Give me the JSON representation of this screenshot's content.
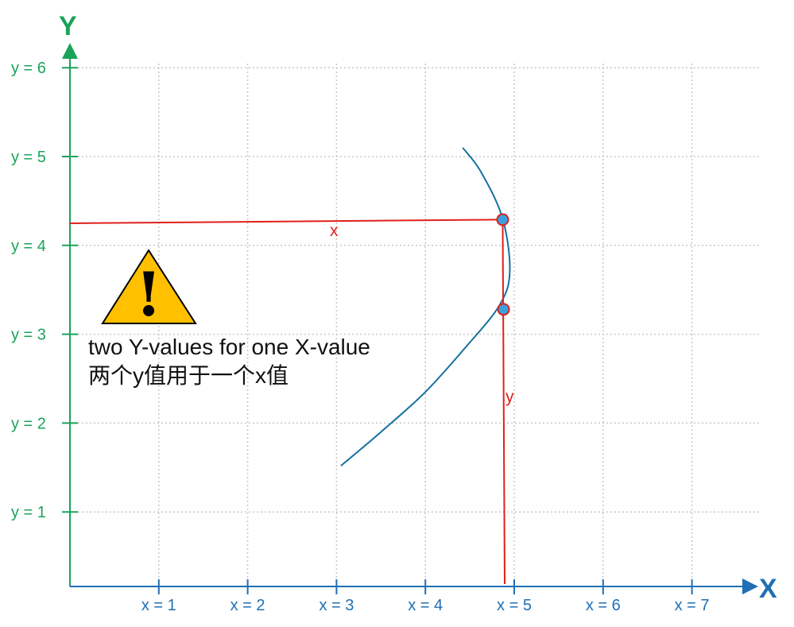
{
  "axes": {
    "y_title": "Y",
    "x_title": "X",
    "x_ticks": [
      "x = 1",
      "x = 2",
      "x = 3",
      "x = 4",
      "x = 5",
      "x = 6",
      "x = 7"
    ],
    "y_ticks": [
      "y = 1",
      "y = 2",
      "y = 3",
      "y = 4",
      "y = 5",
      "y = 6"
    ],
    "x_color": "#1f6fb5",
    "y_color": "#1aa35a"
  },
  "curve": {
    "color": "#1670a0",
    "points": [
      [
        3.05,
        1.52
      ],
      [
        3.5,
        1.9
      ],
      [
        4.0,
        2.35
      ],
      [
        4.45,
        2.85
      ],
      [
        4.83,
        3.32
      ],
      [
        4.95,
        3.7
      ],
      [
        4.87,
        4.3
      ],
      [
        4.63,
        4.82
      ],
      [
        4.42,
        5.1
      ]
    ]
  },
  "guides": {
    "color": "#e0201c",
    "x_label": "x",
    "y_label": "y",
    "intersections": [
      [
        4.87,
        4.29
      ],
      [
        4.88,
        3.28
      ]
    ],
    "point_fill": "#3aa0dd"
  },
  "warning": {
    "icon": "warning-triangle-icon",
    "fill": "#ffc000",
    "line1": "two Y-values for one X-value",
    "line2": "两个y值用于一个x值"
  }
}
